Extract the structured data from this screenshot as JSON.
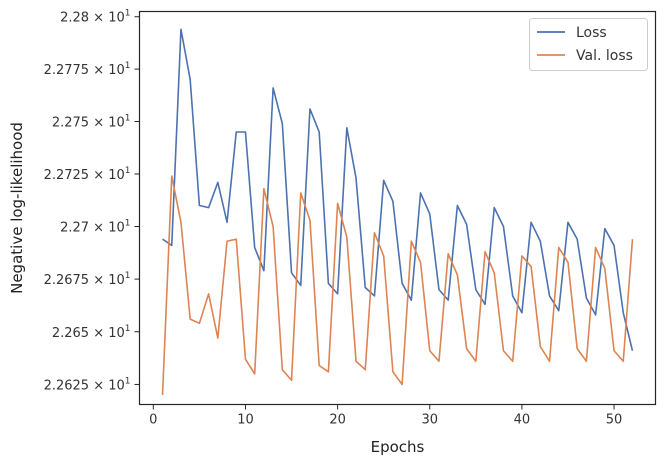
{
  "chart_data": {
    "type": "line",
    "title": "",
    "xlabel": "Epochs",
    "ylabel": "Negative log-likelihood",
    "xlim": [
      -1.5,
      54.5
    ],
    "ylim": [
      22.6155,
      22.8025
    ],
    "y_scale": "log",
    "grid": false,
    "legend_position": "top-right",
    "xticks": [
      0,
      10,
      20,
      30,
      40,
      50
    ],
    "xtick_labels": [
      "0",
      "10",
      "20",
      "30",
      "40",
      "50"
    ],
    "yticks": [
      22.625,
      22.65,
      22.675,
      22.7,
      22.725,
      22.75,
      22.775,
      22.8
    ],
    "ytick_labels": [
      {
        "mantissa": "2.2625",
        "exponent": "1"
      },
      {
        "mantissa": "2.265",
        "exponent": "1"
      },
      {
        "mantissa": "2.2675",
        "exponent": "1"
      },
      {
        "mantissa": "2.27",
        "exponent": "1"
      },
      {
        "mantissa": "2.2725",
        "exponent": "1"
      },
      {
        "mantissa": "2.275",
        "exponent": "1"
      },
      {
        "mantissa": "2.2775",
        "exponent": "1"
      },
      {
        "mantissa": "2.28",
        "exponent": "1"
      }
    ],
    "x": [
      1,
      2,
      3,
      4,
      5,
      6,
      7,
      8,
      9,
      10,
      11,
      12,
      13,
      14,
      15,
      16,
      17,
      18,
      19,
      20,
      21,
      22,
      23,
      24,
      25,
      26,
      27,
      28,
      29,
      30,
      31,
      32,
      33,
      34,
      35,
      36,
      37,
      38,
      39,
      40,
      41,
      42,
      43,
      44,
      45,
      46,
      47,
      48,
      49,
      50,
      51,
      52
    ],
    "series": [
      {
        "name": "Loss",
        "color": "#4c72b0",
        "values": [
          22.694,
          22.691,
          22.794,
          22.77,
          22.71,
          22.709,
          22.721,
          22.702,
          22.745,
          22.745,
          22.69,
          22.679,
          22.766,
          22.749,
          22.678,
          22.672,
          22.756,
          22.745,
          22.673,
          22.668,
          22.747,
          22.723,
          22.671,
          22.667,
          22.722,
          22.712,
          22.673,
          22.665,
          22.716,
          22.706,
          22.67,
          22.665,
          22.71,
          22.701,
          22.67,
          22.663,
          22.709,
          22.7,
          22.667,
          22.659,
          22.702,
          22.693,
          22.667,
          22.66,
          22.702,
          22.694,
          22.666,
          22.658,
          22.699,
          22.691,
          22.659,
          22.641
        ]
      },
      {
        "name": "Val. loss",
        "color": "#dd8452",
        "values": [
          22.62,
          22.724,
          22.702,
          22.656,
          22.654,
          22.668,
          22.647,
          22.693,
          22.694,
          22.637,
          22.63,
          22.718,
          22.7,
          22.632,
          22.627,
          22.716,
          22.703,
          22.634,
          22.631,
          22.711,
          22.695,
          22.636,
          22.632,
          22.697,
          22.686,
          22.631,
          22.625,
          22.693,
          22.683,
          22.641,
          22.636,
          22.687,
          22.677,
          22.642,
          22.636,
          22.688,
          22.678,
          22.641,
          22.636,
          22.686,
          22.681,
          22.643,
          22.636,
          22.69,
          22.683,
          22.642,
          22.636,
          22.69,
          22.68,
          22.641,
          22.636,
          22.694
        ]
      }
    ]
  }
}
